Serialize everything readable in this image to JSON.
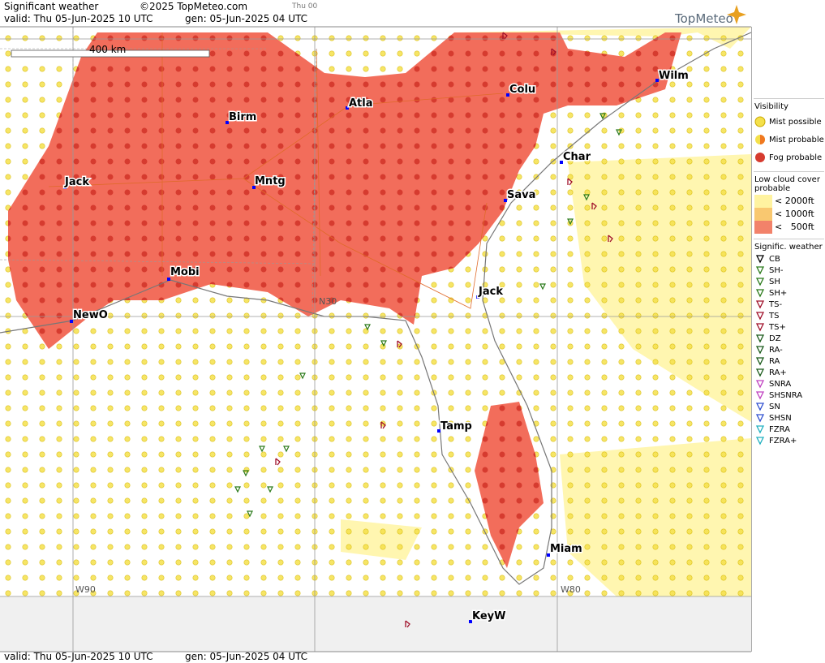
{
  "header": {
    "title": "Significant weather",
    "copyright": "©2025 TopMeteo.com",
    "valid": "valid:  Thu  05-Jun-2025  10 UTC",
    "generated": "gen:  05-Jun-2025  04 UTC",
    "run": "Thu 00",
    "brand": "TopMeteo"
  },
  "footer": {
    "valid": "valid:  Thu  05-Jun-2025  10 UTC",
    "generated": "gen:  05-Jun-2025  04 UTC"
  },
  "map": {
    "scale": "400 km",
    "cities": [
      "Atla",
      "Colu",
      "Wilm",
      "Birm",
      "Char",
      "Jack",
      "Mntg",
      "Sava",
      "Mobi",
      "Jack",
      "NewO",
      "Tamp",
      "Miam",
      "KeyW"
    ],
    "grid_labels": [
      "N30",
      "W90",
      "W80"
    ]
  },
  "legend": {
    "visibility": {
      "title": "Visibility",
      "items": [
        "Mist possible",
        "Mist probable",
        "Fog probable"
      ]
    },
    "low_cloud": {
      "title": "Low cloud cover probable",
      "items": [
        "< 2000ft",
        "< 1000ft",
        "<   500ft"
      ]
    },
    "weather": {
      "title": "Signific. weather",
      "items": [
        "CB",
        "SH-",
        "SH",
        "SH+",
        "TS-",
        "TS",
        "TS+",
        "DZ",
        "RA-",
        "RA",
        "RA+",
        "SNRA",
        "SHSNRA",
        "SN",
        "SHSN",
        "FZRA",
        "FZRA+"
      ]
    }
  }
}
